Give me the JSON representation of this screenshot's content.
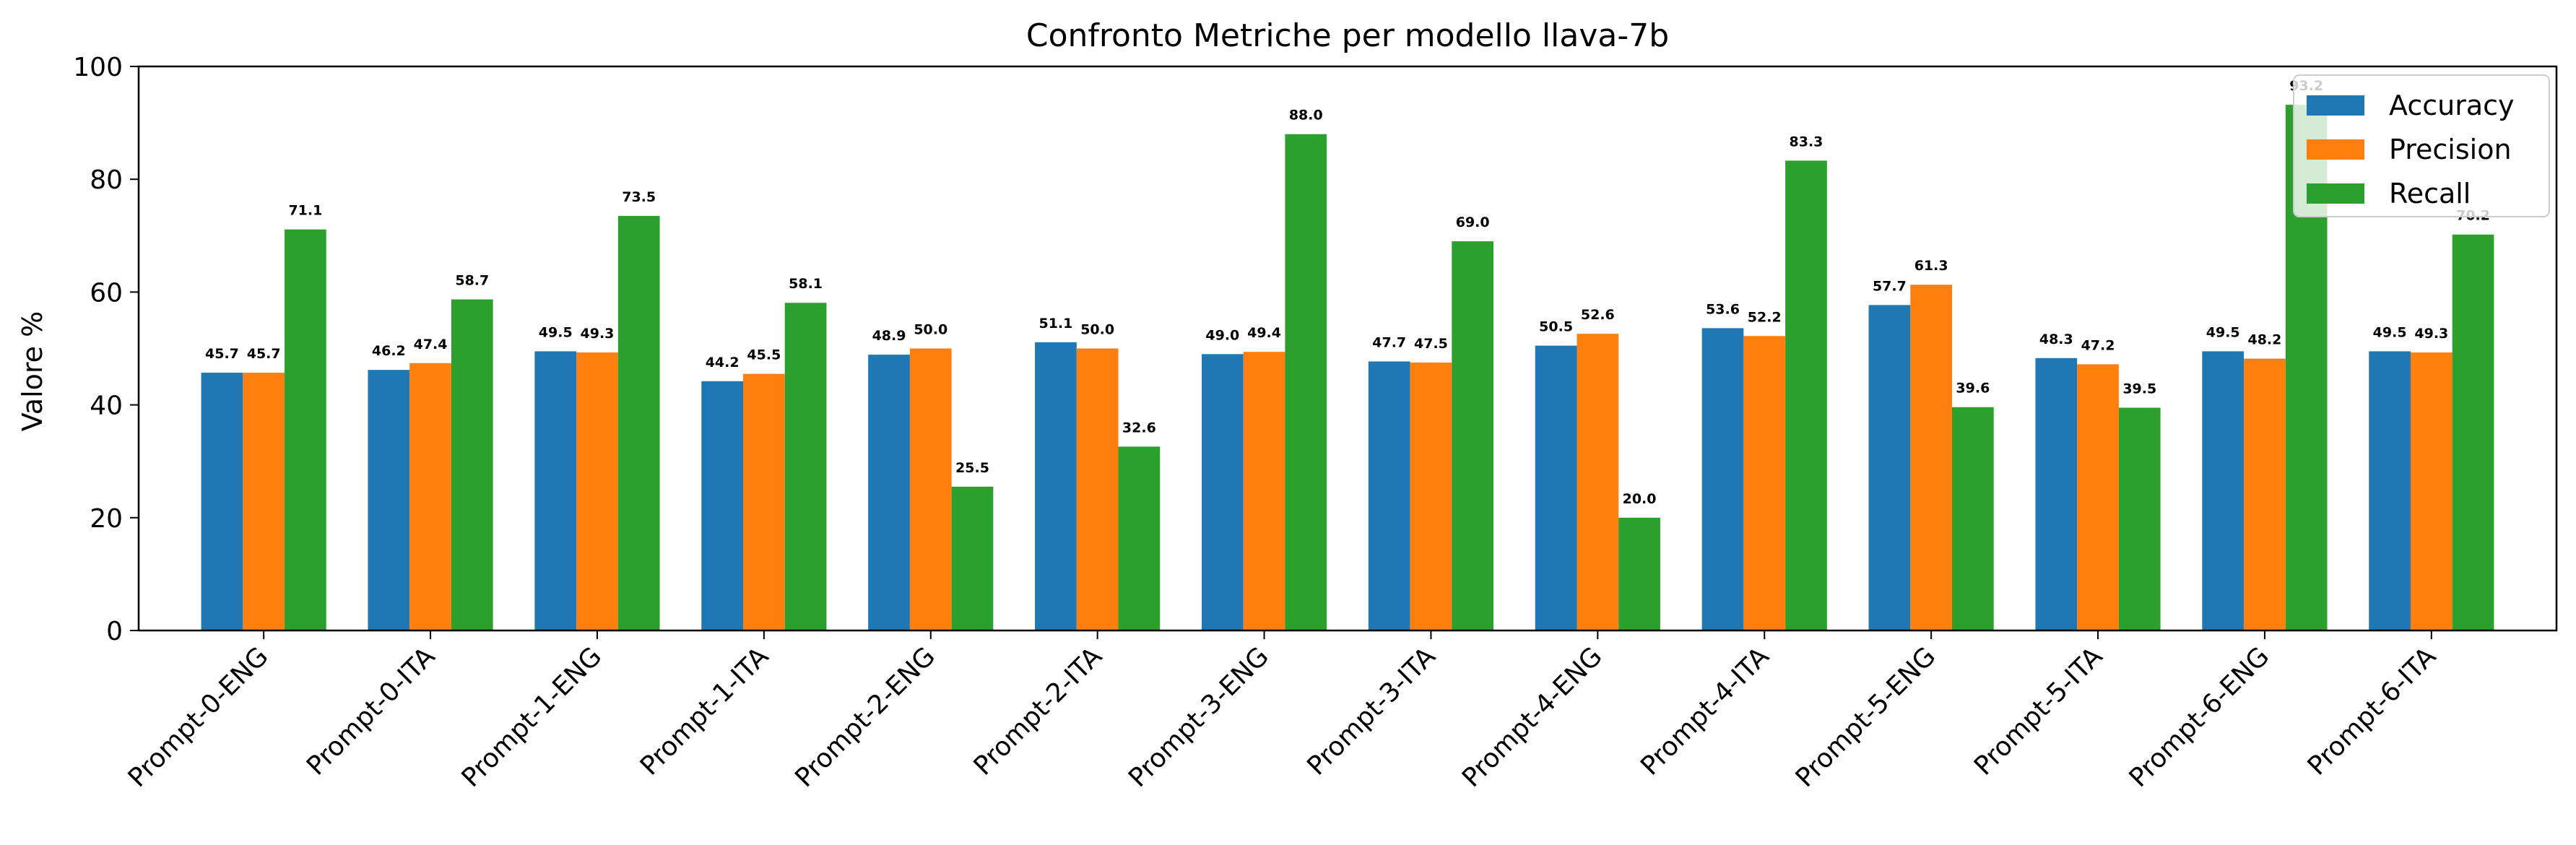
{
  "chart_data": {
    "type": "bar",
    "title": "Confronto Metriche per modello llava-7b",
    "xlabel": "",
    "ylabel": "Valore %",
    "ylim": [
      0,
      100
    ],
    "yticks": [
      0,
      20,
      40,
      60,
      80,
      100
    ],
    "grid": false,
    "legend_position": "top-right",
    "categories": [
      "Prompt-0-ENG",
      "Prompt-0-ITA",
      "Prompt-1-ENG",
      "Prompt-1-ITA",
      "Prompt-2-ENG",
      "Prompt-2-ITA",
      "Prompt-3-ENG",
      "Prompt-3-ITA",
      "Prompt-4-ENG",
      "Prompt-4-ITA",
      "Prompt-5-ENG",
      "Prompt-5-ITA",
      "Prompt-6-ENG",
      "Prompt-6-ITA"
    ],
    "series": [
      {
        "name": "Accuracy",
        "color": "#1f77b4",
        "values": [
          45.7,
          46.2,
          49.5,
          44.2,
          48.9,
          51.1,
          49.0,
          47.7,
          50.5,
          53.6,
          57.7,
          48.3,
          49.5,
          49.5
        ]
      },
      {
        "name": "Precision",
        "color": "#ff7f0e",
        "values": [
          45.7,
          47.4,
          49.3,
          45.5,
          50.0,
          50.0,
          49.4,
          47.5,
          52.6,
          52.2,
          61.3,
          47.2,
          48.2,
          49.3
        ]
      },
      {
        "name": "Recall",
        "color": "#2ca02c",
        "values": [
          71.1,
          58.7,
          73.5,
          58.1,
          25.5,
          32.6,
          88.0,
          69.0,
          20.0,
          83.3,
          39.6,
          39.5,
          93.2,
          70.2
        ]
      }
    ]
  }
}
